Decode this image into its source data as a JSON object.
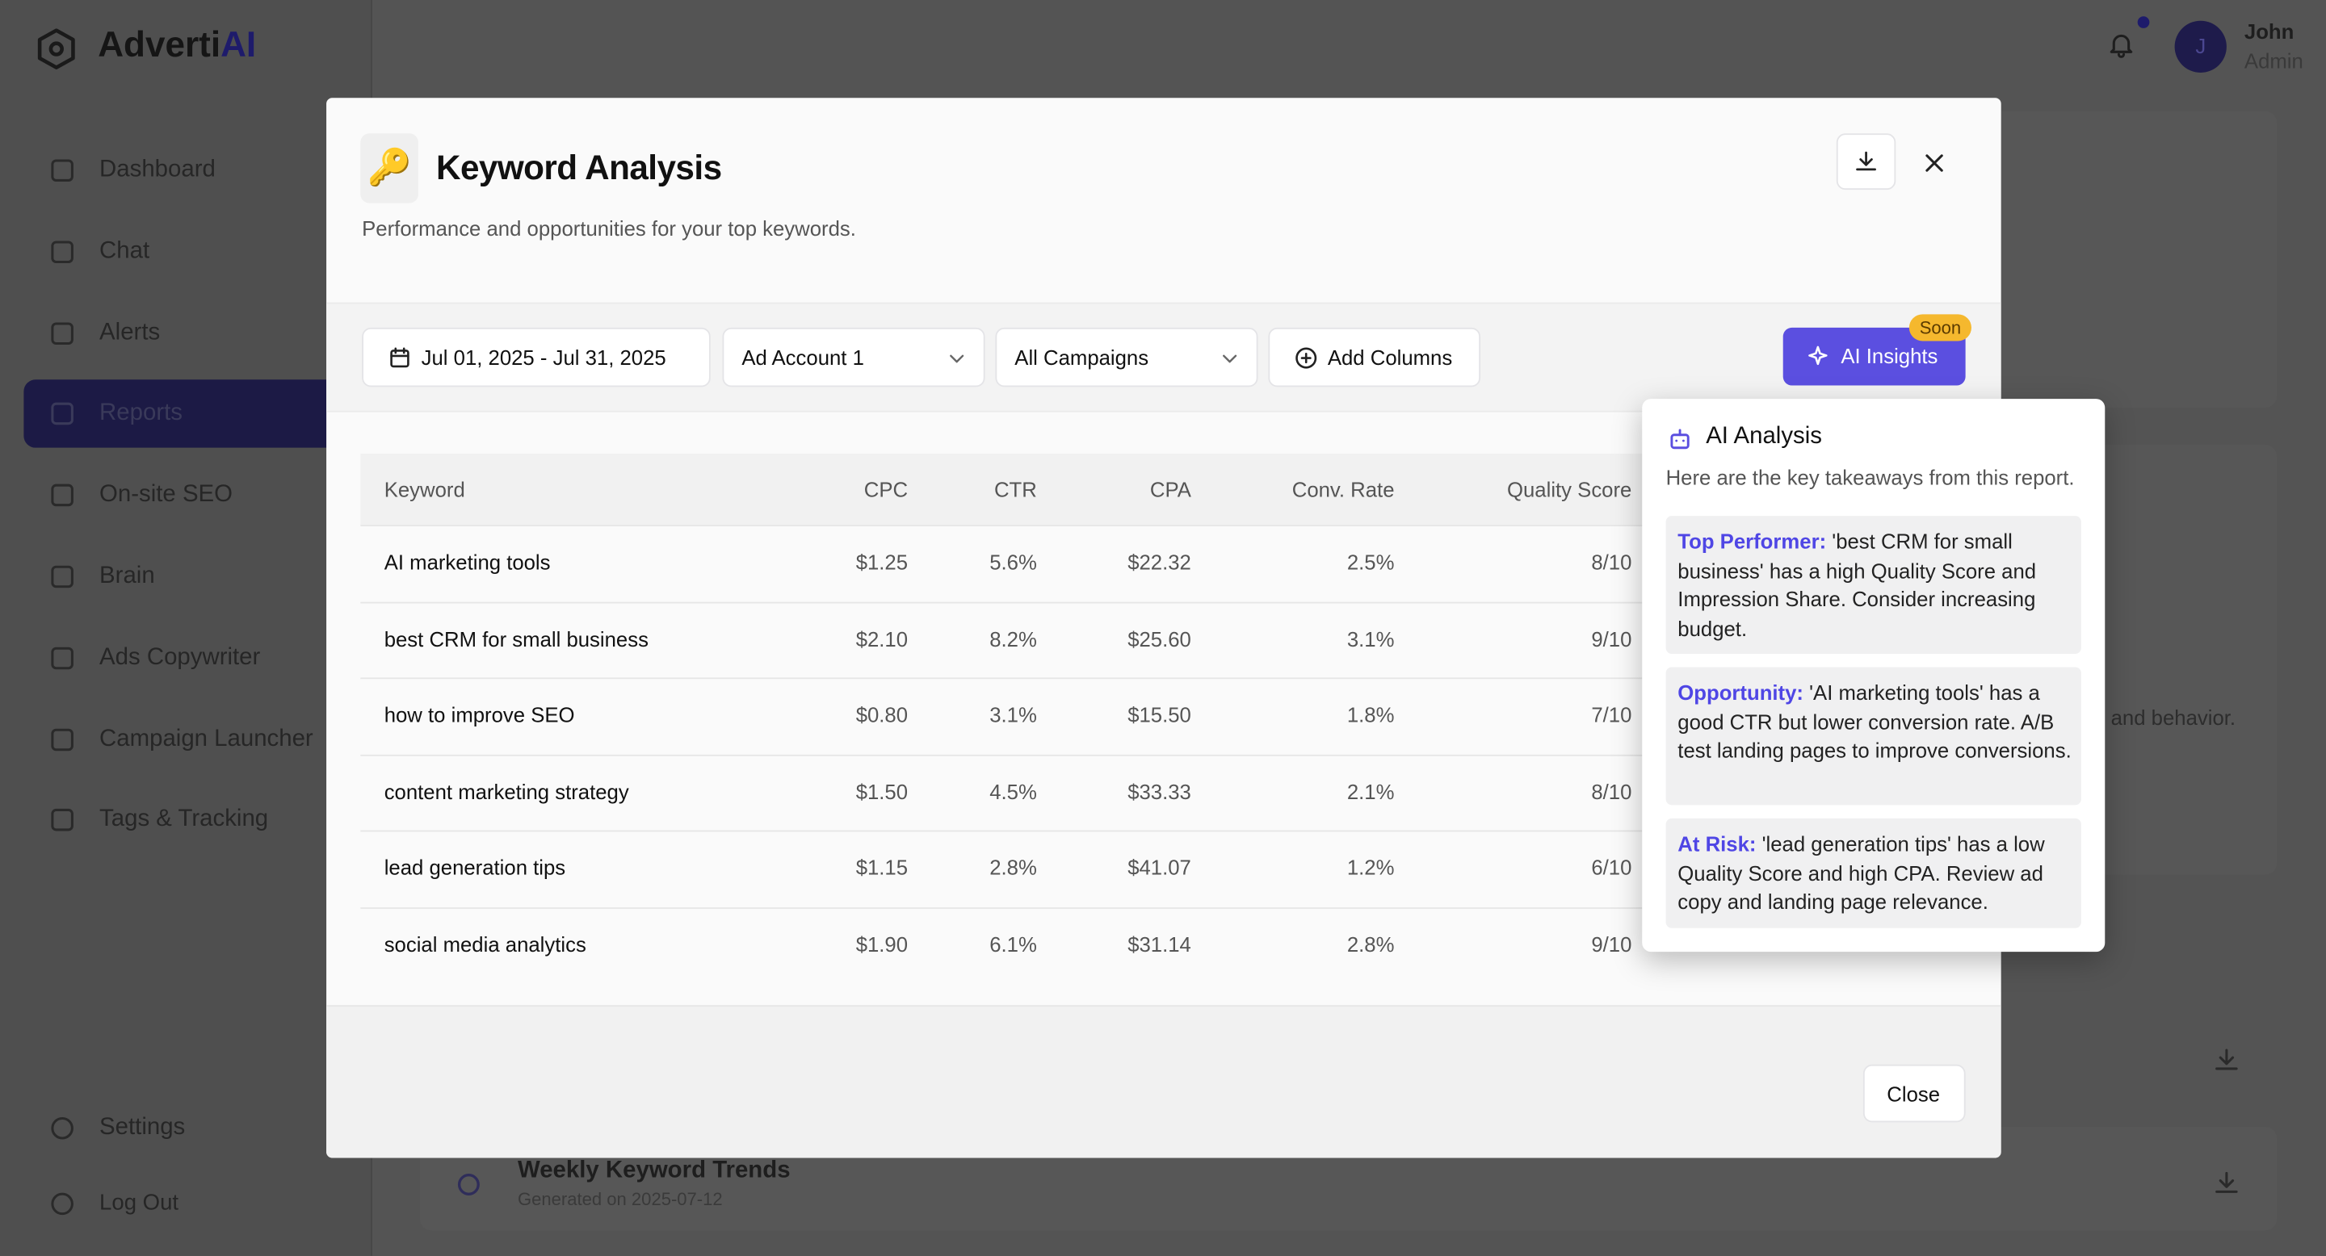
{
  "app": {
    "logo": "Adverti",
    "logo_accent": "AI"
  },
  "user": {
    "initial": "J",
    "name": "John",
    "role": "Admin"
  },
  "nav": [
    "Dashboard",
    "Chat",
    "Alerts",
    "Reports",
    "On-site SEO",
    "Brain",
    "Ads Copywriter",
    "Campaign Launcher",
    "Tags & Tracking"
  ],
  "nav_bottom": [
    "Settings",
    "Log Out"
  ],
  "background": {
    "snippet": "and behavior.",
    "report_title": "Weekly Keyword Trends",
    "report_date": "Generated on 2025-07-12"
  },
  "modal": {
    "icon": "🔑",
    "title": "Keyword Analysis",
    "subtitle": "Performance and opportunities for your top keywords.",
    "filters": {
      "date_range": "Jul 01, 2025 - Jul 31, 2025",
      "account": "Ad Account 1",
      "campaign": "All Campaigns",
      "add_columns": "Add Columns",
      "ai_insights": "AI Insights",
      "badge": "Soon"
    },
    "close": "Close"
  },
  "table": {
    "columns": [
      "Keyword",
      "CPC",
      "CTR",
      "CPA",
      "Conv. Rate",
      "Quality Score"
    ],
    "rows": [
      [
        "AI marketing tools",
        "$1.25",
        "5.6%",
        "$22.32",
        "2.5%",
        "8/10"
      ],
      [
        "best CRM for small business",
        "$2.10",
        "8.2%",
        "$25.60",
        "3.1%",
        "9/10"
      ],
      [
        "how to improve SEO",
        "$0.80",
        "3.1%",
        "$15.50",
        "1.8%",
        "7/10"
      ],
      [
        "content marketing strategy",
        "$1.50",
        "4.5%",
        "$33.33",
        "2.1%",
        "8/10"
      ],
      [
        "lead generation tips",
        "$1.15",
        "2.8%",
        "$41.07",
        "1.2%",
        "6/10"
      ],
      [
        "social media analytics",
        "$1.90",
        "6.1%",
        "$31.14",
        "2.8%",
        "9/10"
      ]
    ]
  },
  "ai_panel": {
    "title": "AI Analysis",
    "intro": "Here are the key takeaways from this report.",
    "insights": [
      {
        "label": "Top Performer:",
        "text": "'best CRM for small business' has a high Quality Score and Impression Share. Consider increasing budget."
      },
      {
        "label": "Opportunity:",
        "text": "'AI marketing tools' has a good CTR but lower conversion rate. A/B test landing pages to improve conversions."
      },
      {
        "label": "At Risk:",
        "text": "'lead generation tips' has a low Quality Score and high CPA. Review ad copy and landing page relevance."
      }
    ]
  }
}
